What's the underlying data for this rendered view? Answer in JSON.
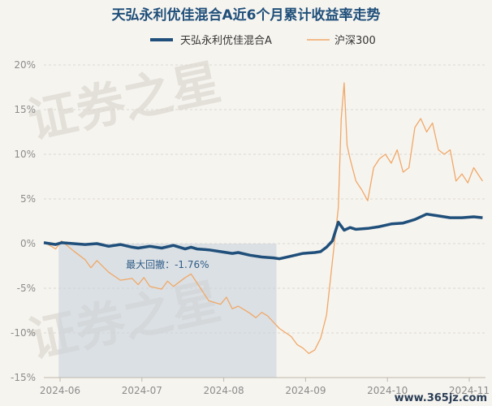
{
  "chart_data": {
    "type": "line",
    "title": "天弘永利优佳混合A近6个月累计收益率走势",
    "legend": [
      "天弘永利优佳混合A",
      "沪深300"
    ],
    "legend_position": "top-center",
    "x_tick_labels": [
      "2024-06",
      "2024-07",
      "2024-08",
      "2024-09",
      "2024-10",
      "2024-11"
    ],
    "y_tick_labels": [
      "20%",
      "15%",
      "10%",
      "5%",
      "0%",
      "-5%",
      "-10%",
      "-15%"
    ],
    "y_ticks": [
      20,
      15,
      10,
      5,
      0,
      -5,
      -10,
      -15
    ],
    "ylim": [
      -15,
      20
    ],
    "xlim": [
      0,
      150
    ],
    "grid": "horizontal",
    "series": [
      {
        "name": "天弘永利优佳混合A",
        "color": "#1f4f7a",
        "x": [
          0,
          4,
          6,
          10,
          14,
          18,
          22,
          26,
          30,
          32,
          36,
          40,
          44,
          48,
          50,
          52,
          56,
          60,
          64,
          66,
          70,
          74,
          78,
          80,
          84,
          88,
          92,
          94,
          96,
          98,
          100,
          102,
          104,
          106,
          110,
          114,
          118,
          122,
          126,
          130,
          134,
          138,
          142,
          146,
          149
        ],
        "y": [
          0.1,
          -0.1,
          0.1,
          0,
          -0.1,
          0,
          -0.3,
          -0.1,
          -0.4,
          -0.5,
          -0.3,
          -0.5,
          -0.2,
          -0.6,
          -0.4,
          -0.6,
          -0.7,
          -0.9,
          -1.1,
          -1.0,
          -1.3,
          -1.5,
          -1.6,
          -1.7,
          -1.4,
          -1.1,
          -1.0,
          -0.9,
          -0.4,
          0.3,
          2.4,
          1.5,
          1.8,
          1.6,
          1.7,
          1.9,
          2.2,
          2.3,
          2.7,
          3.3,
          3.1,
          2.9,
          2.9,
          3.0,
          2.9
        ]
      },
      {
        "name": "沪深300",
        "color": "#f0a868",
        "x": [
          0,
          4,
          6,
          10,
          14,
          16,
          18,
          22,
          26,
          30,
          32,
          34,
          36,
          40,
          42,
          44,
          48,
          50,
          52,
          56,
          60,
          62,
          64,
          66,
          70,
          72,
          74,
          76,
          78,
          80,
          84,
          86,
          88,
          90,
          92,
          94,
          96,
          98,
          100,
          101,
          102,
          103,
          104,
          106,
          108,
          110,
          112,
          114,
          116,
          118,
          120,
          122,
          124,
          126,
          128,
          130,
          132,
          134,
          136,
          138,
          140,
          142,
          144,
          146,
          148,
          149
        ],
        "y": [
          0.2,
          -0.6,
          0.3,
          -0.8,
          -1.8,
          -2.7,
          -1.9,
          -3.2,
          -4.1,
          -3.9,
          -4.6,
          -3.8,
          -4.8,
          -5.1,
          -4.2,
          -4.8,
          -3.8,
          -3.4,
          -4.4,
          -6.4,
          -6.8,
          -6.0,
          -7.3,
          -7.0,
          -7.8,
          -8.3,
          -7.7,
          -8.1,
          -8.8,
          -9.5,
          -10.4,
          -11.3,
          -11.7,
          -12.3,
          -11.9,
          -10.6,
          -8.0,
          -2.0,
          4.0,
          14.0,
          18.0,
          11.0,
          9.5,
          7.0,
          6.0,
          4.8,
          8.5,
          9.5,
          10.0,
          9.0,
          10.5,
          8.0,
          8.5,
          13.0,
          14.0,
          12.5,
          13.5,
          10.5,
          10.0,
          10.5,
          7.0,
          7.8,
          6.8,
          8.5,
          7.5,
          7.0
        ]
      }
    ],
    "annotations": [
      {
        "text": "最大回撤：-1.76%",
        "x_start": 5,
        "x_end": 79,
        "y_top": 0,
        "y_bottom": -15
      }
    ],
    "watermark": [
      "证券之星",
      "证券之星"
    ],
    "site_label": "www.365jz.com"
  }
}
